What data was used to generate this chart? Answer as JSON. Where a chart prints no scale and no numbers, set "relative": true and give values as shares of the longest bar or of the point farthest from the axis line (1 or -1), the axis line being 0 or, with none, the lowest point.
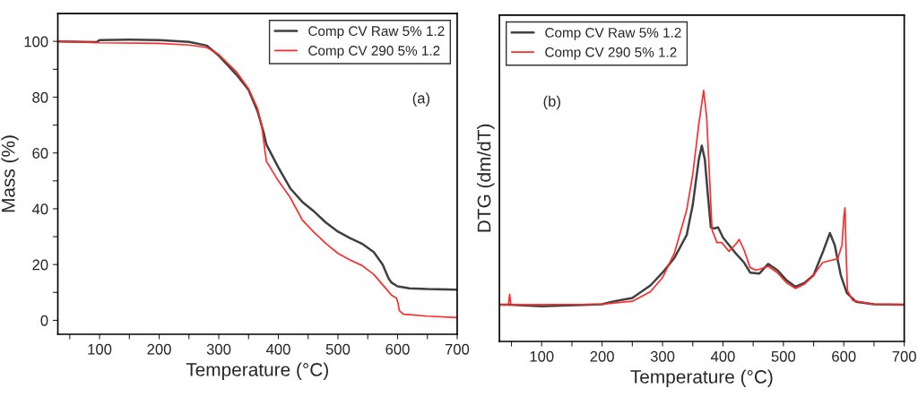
{
  "chart_data": [
    {
      "type": "line",
      "xlabel": "Temperature (°C)",
      "ylabel": "Mass (%)",
      "xlim": [
        30,
        700
      ],
      "ylim": [
        -5,
        110
      ],
      "xticks": [
        {
          "value": 50,
          "label": null
        },
        100,
        {
          "value": 150,
          "label": null
        },
        200,
        {
          "value": 250,
          "label": null
        },
        300,
        {
          "value": 350,
          "label": null
        },
        400,
        {
          "value": 450,
          "label": null
        },
        500,
        {
          "value": 550,
          "label": null
        },
        600,
        {
          "value": 650,
          "label": null
        },
        700
      ],
      "yticks": [
        0,
        {
          "value": 10,
          "label": null
        },
        20,
        {
          "value": 30,
          "label": null
        },
        40,
        {
          "value": 50,
          "label": null
        },
        60,
        {
          "value": 70,
          "label": null
        },
        80,
        {
          "value": 90,
          "label": null
        },
        100
      ],
      "grid": false,
      "legend": "top right",
      "annotations": [
        "(a)"
      ],
      "series": [
        {
          "name": "Comp CV Raw 5% 1.2",
          "color": "#404040",
          "x": [
            30,
            95,
            100,
            150,
            200,
            250,
            280,
            300,
            330,
            350,
            365,
            375,
            380,
            400,
            420,
            440,
            460,
            480,
            500,
            520,
            540,
            560,
            575,
            585,
            590,
            600,
            620,
            650,
            700
          ],
          "values": [
            100,
            99.7,
            100.5,
            100.6,
            100.5,
            99.8,
            98.5,
            94.9,
            88,
            82.6,
            75,
            67.6,
            63,
            54.8,
            47.3,
            42.5,
            39,
            35,
            31.8,
            29.5,
            27.5,
            24.5,
            20,
            15,
            13.5,
            12.2,
            11.5,
            11.2,
            11
          ]
        },
        {
          "name": "Comp CV 290 5% 1.2",
          "color": "#ff2a2a",
          "x": [
            30,
            50,
            100,
            200,
            250,
            280,
            300,
            330,
            350,
            365,
            372,
            375,
            378,
            380,
            390,
            400,
            420,
            440,
            460,
            480,
            500,
            520,
            540,
            560,
            580,
            590,
            598,
            601,
            603,
            610,
            650,
            700
          ],
          "values": [
            100,
            100,
            99.5,
            99.3,
            98.7,
            97.8,
            95.3,
            89,
            83,
            76,
            70,
            65,
            60,
            57,
            53.5,
            50,
            44,
            36,
            31.5,
            27.5,
            24,
            21.7,
            19.7,
            16.5,
            11.5,
            9,
            8,
            6,
            3.5,
            2.2,
            1.5,
            1
          ]
        }
      ]
    },
    {
      "type": "line",
      "xlabel": "Temperature (°C)",
      "ylabel": "DTG (dm/dT)",
      "relative": true,
      "xlim": [
        30,
        700
      ],
      "tick_labels": "x",
      "xticks": [
        {
          "value": 50,
          "label": null
        },
        100,
        {
          "value": 150,
          "label": null
        },
        200,
        {
          "value": 250,
          "label": null
        },
        300,
        {
          "value": 350,
          "label": null
        },
        400,
        {
          "value": 450,
          "label": null
        },
        500,
        {
          "value": 550,
          "label": null
        },
        600,
        {
          "value": 650,
          "label": null
        },
        700
      ],
      "grid": false,
      "legend": "top left",
      "annotations": [
        "(b)"
      ],
      "series": [
        {
          "name": "Comp CV Raw 5% 1.2",
          "color": "#404040",
          "x": [
            30,
            46,
            100,
            200,
            220,
            250,
            280,
            300,
            320,
            340,
            350,
            360,
            365,
            370,
            375,
            380,
            385,
            392,
            400,
            420,
            435,
            445,
            460,
            475,
            490,
            505,
            520,
            535,
            550,
            565,
            577,
            585,
            595,
            605,
            620,
            650,
            700
          ],
          "values": [
            0.146,
            0.146,
            0.14,
            0.148,
            0.16,
            0.173,
            0.223,
            0.274,
            0.334,
            0.424,
            0.544,
            0.725,
            0.78,
            0.725,
            0.584,
            0.454,
            0.45,
            0.454,
            0.414,
            0.354,
            0.314,
            0.274,
            0.27,
            0.309,
            0.284,
            0.244,
            0.218,
            0.233,
            0.264,
            0.354,
            0.432,
            0.384,
            0.264,
            0.193,
            0.158,
            0.148,
            0.146
          ]
        },
        {
          "name": "Comp CV 290 5% 1.2",
          "color": "#ff2a2a",
          "x": [
            30,
            45,
            47,
            49,
            200,
            250,
            280,
            300,
            320,
            340,
            350,
            360,
            368,
            373,
            378,
            382,
            390,
            398,
            410,
            420,
            427,
            435,
            445,
            455,
            475,
            490,
            505,
            520,
            535,
            550,
            565,
            580,
            590,
            597,
            600,
            602,
            604,
            606,
            615,
            650,
            700
          ],
          "values": [
            0.146,
            0.146,
            0.188,
            0.146,
            0.148,
            0.16,
            0.198,
            0.254,
            0.354,
            0.524,
            0.664,
            0.865,
            1.0,
            0.895,
            0.645,
            0.444,
            0.394,
            0.394,
            0.359,
            0.384,
            0.406,
            0.364,
            0.294,
            0.284,
            0.299,
            0.274,
            0.234,
            0.211,
            0.228,
            0.264,
            0.314,
            0.324,
            0.329,
            0.384,
            0.494,
            0.532,
            0.344,
            0.203,
            0.163,
            0.148,
            0.146
          ]
        }
      ]
    }
  ]
}
